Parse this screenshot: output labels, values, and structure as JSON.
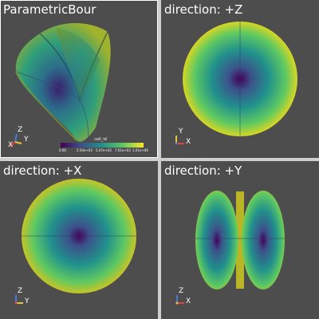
{
  "window": {
    "layout": "2x2",
    "active_panel": 0
  },
  "panels": [
    {
      "title": "ParametricBour",
      "orientation": [
        "Z",
        "X",
        "Y"
      ]
    },
    {
      "title": "direction: +Z",
      "orientation": [
        "Y",
        "X"
      ]
    },
    {
      "title": "direction: +X",
      "orientation": [
        "Z",
        "Y"
      ]
    },
    {
      "title": "direction: +Y",
      "orientation": [
        "Z",
        "X"
      ]
    }
  ],
  "scalar_bar": {
    "title": "cell_id",
    "ticks": [
      "0.00",
      "2.54e+03",
      "5.07e+03",
      "7.61e+03",
      "1.01e+04"
    ],
    "colormap": [
      "#440154",
      "#3b528b",
      "#21918c",
      "#5ec962",
      "#fde725"
    ]
  },
  "colors": {
    "background": "#4d4d4d",
    "divider": "#cfcfcf",
    "axis_x": "#e0413a",
    "axis_y": "#e4c63b",
    "axis_z": "#4a78d8"
  }
}
